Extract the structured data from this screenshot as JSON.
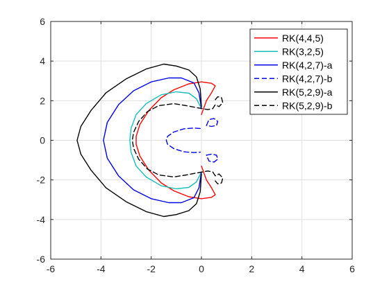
{
  "chart_data": {
    "type": "line",
    "title": "",
    "xlabel": "",
    "ylabel": "",
    "xlim": [
      -6,
      6
    ],
    "ylim": [
      -6,
      6
    ],
    "xticks": [
      -6,
      -4,
      -2,
      0,
      2,
      4,
      6
    ],
    "yticks": [
      -6,
      -4,
      -2,
      0,
      2,
      4,
      6
    ],
    "xtick_labels": [
      "-6",
      "-4",
      "-2",
      "0",
      "2",
      "4",
      "6"
    ],
    "ytick_labels": [
      "-6",
      "-4",
      "-2",
      "0",
      "2",
      "4",
      "6"
    ],
    "grid": true,
    "legend_position": "top-right",
    "series": [
      {
        "name": "RK(4,4,5)",
        "color": "#ff0000",
        "dash": "solid",
        "points": [
          [
            0,
            1.3
          ],
          [
            0.2,
            2.0
          ],
          [
            0.4,
            2.4
          ],
          [
            0.55,
            2.75
          ],
          [
            0.4,
            2.88
          ],
          [
            0,
            2.95
          ],
          [
            -0.5,
            2.85
          ],
          [
            -1.1,
            2.55
          ],
          [
            -1.6,
            2.15
          ],
          [
            -2.1,
            1.5
          ],
          [
            -2.45,
            0.8
          ],
          [
            -2.6,
            0.2
          ],
          [
            -2.6,
            0
          ],
          [
            -2.6,
            -0.2
          ],
          [
            -2.45,
            -0.8
          ],
          [
            -2.1,
            -1.5
          ],
          [
            -1.6,
            -2.15
          ],
          [
            -1.1,
            -2.55
          ],
          [
            -0.5,
            -2.85
          ],
          [
            0,
            -2.95
          ],
          [
            0.4,
            -2.88
          ],
          [
            0.55,
            -2.75
          ],
          [
            0.4,
            -2.4
          ],
          [
            0.2,
            -2.0
          ],
          [
            0,
            -1.3
          ]
        ]
      },
      {
        "name": "RK(3,2,5)",
        "color": "#17bebb",
        "dash": "solid",
        "points": [
          [
            0,
            1.6
          ],
          [
            -0.2,
            2.1
          ],
          [
            -0.5,
            2.38
          ],
          [
            -1.0,
            2.45
          ],
          [
            -1.6,
            2.3
          ],
          [
            -2.2,
            1.85
          ],
          [
            -2.6,
            1.3
          ],
          [
            -2.8,
            0.6
          ],
          [
            -2.85,
            0
          ],
          [
            -2.8,
            -0.6
          ],
          [
            -2.6,
            -1.3
          ],
          [
            -2.2,
            -1.85
          ],
          [
            -1.6,
            -2.3
          ],
          [
            -1.0,
            -2.45
          ],
          [
            -0.5,
            -2.38
          ],
          [
            -0.2,
            -2.1
          ],
          [
            0,
            -1.6
          ]
        ]
      },
      {
        "name": "RK(4,2,7)-a",
        "color": "#0000e6",
        "dash": "solid",
        "points": [
          [
            0,
            1.6
          ],
          [
            -0.1,
            2.4
          ],
          [
            -0.3,
            2.9
          ],
          [
            -0.8,
            3.15
          ],
          [
            -1.3,
            3.15
          ],
          [
            -2.0,
            2.95
          ],
          [
            -2.7,
            2.5
          ],
          [
            -3.3,
            1.8
          ],
          [
            -3.75,
            0.9
          ],
          [
            -3.9,
            0
          ],
          [
            -3.75,
            -0.9
          ],
          [
            -3.3,
            -1.8
          ],
          [
            -2.7,
            -2.5
          ],
          [
            -2.0,
            -2.95
          ],
          [
            -1.3,
            -3.15
          ],
          [
            -0.8,
            -3.15
          ],
          [
            -0.3,
            -2.9
          ],
          [
            -0.1,
            -2.4
          ],
          [
            0,
            -1.6
          ]
        ]
      },
      {
        "name": "RK(4,2,7)-b",
        "color": "#0000e6",
        "dash": "dashed",
        "points": [
          [
            0.2,
            0.75
          ],
          [
            0.3,
            1.05
          ],
          [
            0.5,
            1.1
          ],
          [
            0.65,
            0.95
          ],
          [
            0.6,
            0.75
          ],
          [
            0.4,
            0.7
          ],
          [
            0.2,
            0.75
          ],
          null,
          [
            -0.05,
            0.6
          ],
          [
            -0.3,
            0.62
          ],
          [
            -0.7,
            0.58
          ],
          [
            -1.1,
            0.42
          ],
          [
            -1.35,
            0.2
          ],
          [
            -1.4,
            0
          ],
          [
            -1.35,
            -0.2
          ],
          [
            -1.1,
            -0.42
          ],
          [
            -0.7,
            -0.58
          ],
          [
            -0.3,
            -0.62
          ],
          [
            -0.05,
            -0.6
          ],
          null,
          [
            0.2,
            -0.75
          ],
          [
            0.4,
            -0.7
          ],
          [
            0.6,
            -0.75
          ],
          [
            0.65,
            -0.95
          ],
          [
            0.5,
            -1.1
          ],
          [
            0.3,
            -1.05
          ],
          [
            0.2,
            -0.75
          ]
        ]
      },
      {
        "name": "RK(5,2,9)-a",
        "color": "#000000",
        "dash": "solid",
        "points": [
          [
            0,
            1.7
          ],
          [
            -0.05,
            2.6
          ],
          [
            -0.2,
            3.2
          ],
          [
            -0.5,
            3.55
          ],
          [
            -1.0,
            3.75
          ],
          [
            -1.5,
            3.85
          ],
          [
            -2.2,
            3.6
          ],
          [
            -3.0,
            3.1
          ],
          [
            -3.8,
            2.4
          ],
          [
            -4.4,
            1.5
          ],
          [
            -4.8,
            0.7
          ],
          [
            -4.95,
            0
          ],
          [
            -4.8,
            -0.7
          ],
          [
            -4.4,
            -1.5
          ],
          [
            -3.8,
            -2.4
          ],
          [
            -3.0,
            -3.1
          ],
          [
            -2.2,
            -3.6
          ],
          [
            -1.5,
            -3.85
          ],
          [
            -1.0,
            -3.75
          ],
          [
            -0.5,
            -3.55
          ],
          [
            -0.2,
            -3.2
          ],
          [
            -0.05,
            -2.6
          ],
          [
            0,
            -1.7
          ]
        ]
      },
      {
        "name": "RK(5,2,9)-b",
        "color": "#000000",
        "dash": "dashed",
        "points": [
          [
            0.55,
            2.05
          ],
          [
            0.65,
            2.2
          ],
          [
            0.8,
            2.15
          ],
          [
            0.85,
            1.9
          ],
          [
            0.7,
            1.7
          ],
          [
            0.55,
            1.8
          ],
          [
            0.45,
            1.6
          ],
          [
            0.25,
            1.55
          ],
          [
            0.05,
            1.6
          ],
          [
            -0.2,
            1.65
          ],
          [
            -0.6,
            1.75
          ],
          [
            -1.1,
            1.85
          ],
          [
            -1.7,
            1.75
          ],
          [
            -2.15,
            1.45
          ],
          [
            -2.5,
            0.95
          ],
          [
            -2.7,
            0.4
          ],
          [
            -2.75,
            0
          ],
          [
            -2.7,
            -0.4
          ],
          [
            -2.5,
            -0.95
          ],
          [
            -2.15,
            -1.45
          ],
          [
            -1.7,
            -1.75
          ],
          [
            -1.1,
            -1.85
          ],
          [
            -0.6,
            -1.75
          ],
          [
            -0.2,
            -1.65
          ],
          [
            0.05,
            -1.6
          ],
          [
            0.25,
            -1.55
          ],
          [
            0.45,
            -1.6
          ],
          [
            0.55,
            -1.8
          ],
          [
            0.7,
            -1.7
          ],
          [
            0.85,
            -1.9
          ],
          [
            0.8,
            -2.15
          ],
          [
            0.65,
            -2.2
          ],
          [
            0.55,
            -2.05
          ]
        ]
      }
    ]
  }
}
